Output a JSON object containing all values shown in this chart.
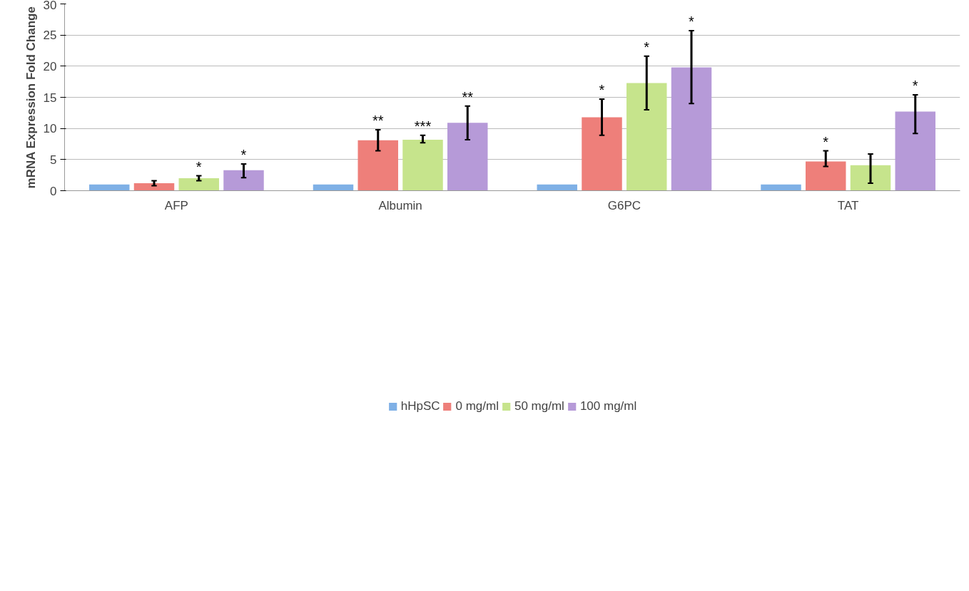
{
  "chart_data": {
    "type": "bar",
    "ylabel": "mRNA Expression Fold Change",
    "categories": [
      "AFP",
      "Albumin",
      "G6PC",
      "TAT"
    ],
    "series": [
      {
        "name": "hHpSC",
        "color": "#7fb0e6",
        "values": [
          1,
          1,
          1,
          1
        ]
      },
      {
        "name": "0 mg/ml",
        "color": "#ee7f7a",
        "values": [
          1.2,
          8.1,
          11.8,
          4.7
        ],
        "errors": [
          [
            0.8,
            1.6
          ],
          [
            6.4,
            9.8
          ],
          [
            8.9,
            14.7
          ],
          [
            3.9,
            6.4
          ]
        ],
        "value_labels": [
          null,
          "**",
          "*",
          "*"
        ]
      },
      {
        "name": "50 mg/ml",
        "color": "#c6e48c",
        "values": [
          2.0,
          8.2,
          17.3,
          4.1
        ],
        "errors": [
          [
            1.6,
            2.4
          ],
          [
            7.7,
            8.9
          ],
          [
            13.0,
            21.6
          ],
          [
            1.2,
            5.9
          ]
        ],
        "value_labels": [
          "*",
          "***",
          "*",
          null
        ]
      },
      {
        "name": "100 mg/ml",
        "color": "#b69ad8",
        "values": [
          3.3,
          10.9,
          19.8,
          12.7
        ],
        "errors": [
          [
            2.1,
            4.3
          ],
          [
            8.2,
            13.6
          ],
          [
            14.0,
            25.7
          ],
          [
            9.2,
            15.4
          ]
        ],
        "value_labels": [
          "*",
          "**",
          "*",
          "*"
        ]
      }
    ],
    "ylim": [
      0,
      30
    ],
    "yticks": [
      0,
      5,
      10,
      15,
      20,
      25,
      30
    ],
    "grid": "y",
    "legend": "bottom"
  }
}
